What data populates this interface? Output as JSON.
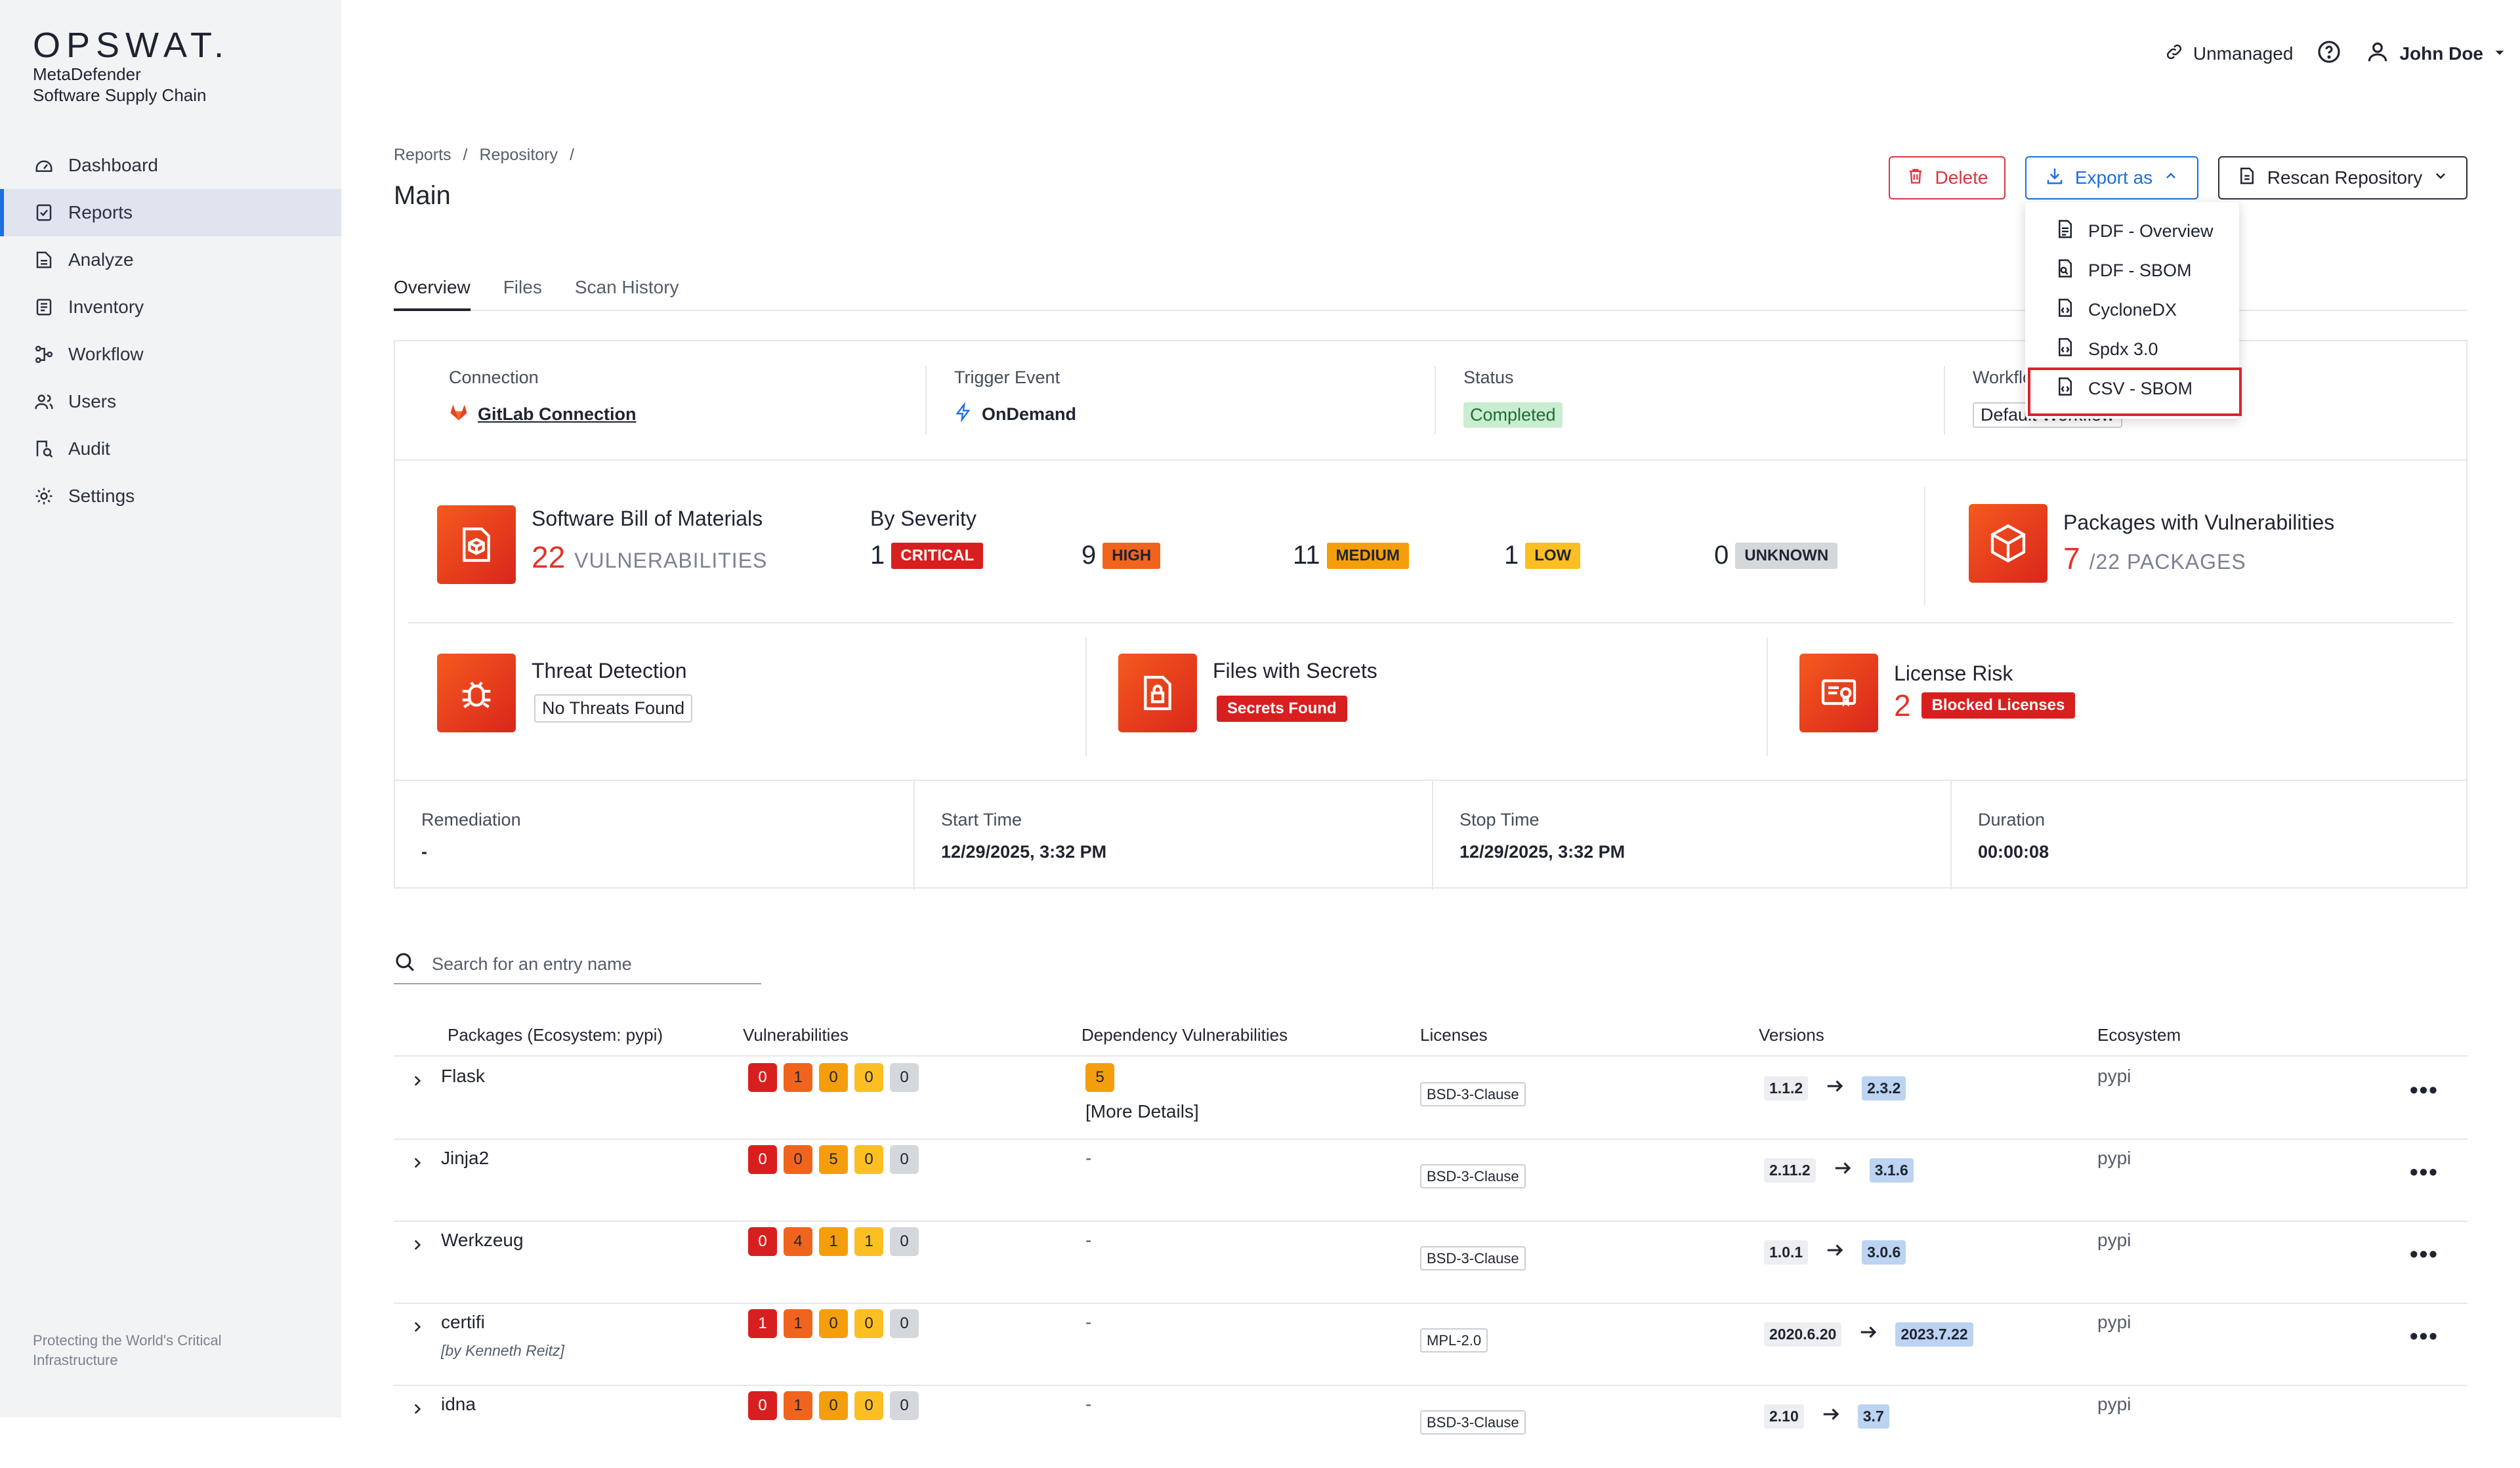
{
  "sidebar": {
    "logo": "OPSWAT.",
    "product_line1": "MetaDefender",
    "product_line2": "Software Supply Chain",
    "items": [
      {
        "label": "Dashboard",
        "icon": "dashboard-icon"
      },
      {
        "label": "Reports",
        "icon": "reports-icon",
        "active": true
      },
      {
        "label": "Analyze",
        "icon": "analyze-icon"
      },
      {
        "label": "Inventory",
        "icon": "inventory-icon"
      },
      {
        "label": "Workflow",
        "icon": "workflow-icon"
      },
      {
        "label": "Users",
        "icon": "users-icon"
      },
      {
        "label": "Audit",
        "icon": "audit-icon"
      },
      {
        "label": "Settings",
        "icon": "settings-icon"
      }
    ],
    "tagline_line1": "Protecting the World's Critical",
    "tagline_line2": "Infrastructure"
  },
  "topbar": {
    "unmanaged": "Unmanaged",
    "user": "John Doe"
  },
  "breadcrumb": [
    "Reports",
    "Repository"
  ],
  "page_title": "Main",
  "actions": {
    "delete": "Delete",
    "export": "Export as",
    "rescan": "Rescan Repository"
  },
  "export_menu": [
    {
      "label": "PDF - Overview",
      "icon": "pdf-file-icon"
    },
    {
      "label": "PDF - SBOM",
      "icon": "pdf-sbom-icon"
    },
    {
      "label": "CycloneDX",
      "icon": "cyclonedx-file-icon"
    },
    {
      "label": "Spdx 3.0",
      "icon": "spdx-file-icon"
    },
    {
      "label": "CSV - SBOM",
      "icon": "csv-file-icon",
      "highlighted": true
    }
  ],
  "tabs": [
    "Overview",
    "Files",
    "Scan History"
  ],
  "overview": {
    "connection": {
      "label": "Connection",
      "value": "GitLab Connection"
    },
    "trigger": {
      "label": "Trigger Event",
      "value": "OnDemand"
    },
    "status": {
      "label": "Status",
      "value": "Completed"
    },
    "workflow": {
      "label": "Workflow",
      "value": "Default Workflow"
    },
    "sbom": {
      "title": "Software Bill of Materials",
      "count": "22",
      "unit": "VULNERABILITIES"
    },
    "severity": {
      "title": "By Severity",
      "items": [
        {
          "count": "1",
          "label": "CRITICAL"
        },
        {
          "count": "9",
          "label": "HIGH"
        },
        {
          "count": "11",
          "label": "MEDIUM"
        },
        {
          "count": "1",
          "label": "LOW"
        },
        {
          "count": "0",
          "label": "UNKNOWN"
        }
      ]
    },
    "packages": {
      "title": "Packages with Vulnerabilities",
      "count": "7",
      "unit": "/22 PACKAGES"
    },
    "threat": {
      "title": "Threat Detection",
      "value": "No Threats Found"
    },
    "secrets": {
      "title": "Files with Secrets",
      "value": "Secrets Found"
    },
    "license": {
      "title": "License Risk",
      "count": "2",
      "value": "Blocked Licenses"
    },
    "remediation": {
      "label": "Remediation",
      "value": "-"
    },
    "start": {
      "label": "Start Time",
      "value": "12/29/2025, 3:32 PM"
    },
    "stop": {
      "label": "Stop Time",
      "value": "12/29/2025, 3:32 PM"
    },
    "duration": {
      "label": "Duration",
      "value": "00:00:08"
    }
  },
  "search": {
    "placeholder": "Search for an entry name"
  },
  "table": {
    "headers": [
      "Packages (Ecosystem: pypi)",
      "Vulnerabilities",
      "Dependency Vulnerabilities",
      "Licenses",
      "Versions",
      "Ecosystem"
    ],
    "rows": [
      {
        "name": "Flask",
        "author": "",
        "vulns": [
          "0",
          "1",
          "0",
          "0",
          "0"
        ],
        "dep": "5",
        "dep_details": "[More Details]",
        "license": "BSD-3-Clause",
        "from": "1.1.2",
        "to": "2.3.2",
        "eco": "pypi"
      },
      {
        "name": "Jinja2",
        "author": "",
        "vulns": [
          "0",
          "0",
          "5",
          "0",
          "0"
        ],
        "dep": "-",
        "dep_details": "",
        "license": "BSD-3-Clause",
        "from": "2.11.2",
        "to": "3.1.6",
        "eco": "pypi"
      },
      {
        "name": "Werkzeug",
        "author": "",
        "vulns": [
          "0",
          "4",
          "1",
          "1",
          "0"
        ],
        "dep": "-",
        "dep_details": "",
        "license": "BSD-3-Clause",
        "from": "1.0.1",
        "to": "3.0.6",
        "eco": "pypi"
      },
      {
        "name": "certifi",
        "author": "[by Kenneth Reitz]",
        "vulns": [
          "1",
          "1",
          "0",
          "0",
          "0"
        ],
        "dep": "-",
        "dep_details": "",
        "license": "MPL-2.0",
        "from": "2020.6.20",
        "to": "2023.7.22",
        "eco": "pypi"
      },
      {
        "name": "idna",
        "author": "",
        "vulns": [
          "0",
          "1",
          "0",
          "0",
          "0"
        ],
        "dep": "-",
        "dep_details": "",
        "license": "BSD-3-Clause",
        "from": "2.10",
        "to": "3.7",
        "eco": "pypi"
      }
    ]
  }
}
